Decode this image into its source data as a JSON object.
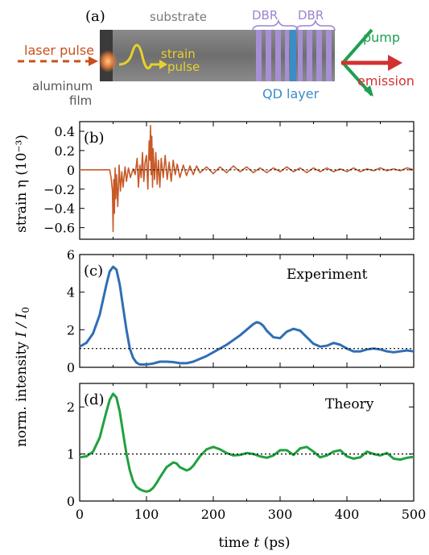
{
  "schematic": {
    "label": "(a)",
    "substrate": "substrate",
    "dbr_left": "DBR",
    "dbr_right": "DBR",
    "laser_pulse": "laser pulse",
    "aluminum": "aluminum",
    "film": "film",
    "strain": "strain",
    "pulse": "pulse",
    "qd_layer": "QD layer",
    "pump": "pump",
    "emission": "emission",
    "colors": {
      "substrate": "#7a7a7a",
      "dbr": "#a68fd6",
      "qd": "#3c8cc8",
      "laser": "#c8501e",
      "strain_pulse": "#e8d22a",
      "pump": "#1ea050",
      "emission": "#d23232",
      "dbr_label": "#9b86cf",
      "qd_label": "#3c8cc8"
    }
  },
  "chart_data": [
    {
      "panel": "(b)",
      "type": "line",
      "ylabel_prefix": "strain η",
      "ylabel_unit": "(10⁻³)",
      "xlim": [
        0,
        500
      ],
      "ylim": [
        -0.72,
        0.5
      ],
      "yticks": [
        -0.6,
        -0.4,
        -0.2,
        0,
        0.2,
        0.4
      ],
      "ytick_labels": [
        "−0.6",
        "−0.4",
        "−0.2",
        "0",
        "0.2",
        "0.4"
      ],
      "series": [
        {
          "color": "#c85a28",
          "x": [
            0,
            40,
            45,
            47,
            49,
            50,
            51,
            52,
            53,
            54,
            55,
            57,
            59,
            61,
            63,
            65,
            68,
            70,
            73,
            76,
            80,
            83,
            86,
            88,
            90,
            92,
            94,
            96,
            98,
            100,
            102,
            104,
            105,
            106,
            107,
            108,
            109,
            110,
            112,
            114,
            116,
            118,
            120,
            122,
            125,
            128,
            131,
            134,
            137,
            140,
            143,
            146,
            150,
            155,
            160,
            165,
            170,
            175,
            180,
            190,
            200,
            210,
            220,
            230,
            240,
            250,
            260,
            270,
            280,
            290,
            300,
            310,
            320,
            330,
            340,
            350,
            360,
            370,
            380,
            390,
            400,
            410,
            420,
            430,
            440,
            450,
            460,
            470,
            480,
            490,
            500
          ],
          "y": [
            0,
            0,
            0,
            -0.08,
            -0.22,
            -0.64,
            -0.1,
            -0.45,
            0.02,
            -0.3,
            -0.05,
            -0.38,
            0.05,
            -0.22,
            -0.02,
            -0.18,
            0.03,
            -0.12,
            0.02,
            -0.08,
            0.01,
            -0.05,
            0.12,
            -0.18,
            0.05,
            -0.08,
            0.18,
            -0.12,
            0.08,
            0.15,
            -0.2,
            0.3,
            0.1,
            0.46,
            -0.05,
            0.35,
            -0.18,
            0.22,
            -0.1,
            0.18,
            -0.15,
            0.1,
            -0.18,
            0.12,
            -0.08,
            0.15,
            -0.1,
            0.08,
            -0.12,
            0.1,
            -0.05,
            0.06,
            -0.08,
            0.05,
            -0.06,
            0.04,
            -0.05,
            0.04,
            -0.03,
            0.03,
            -0.04,
            0.03,
            -0.03,
            0.04,
            -0.02,
            0.03,
            -0.03,
            0.02,
            -0.03,
            0.02,
            -0.02,
            0.03,
            -0.02,
            0.02,
            -0.03,
            0.02,
            -0.02,
            0.02,
            -0.02,
            0.01,
            -0.02,
            0.02,
            -0.02,
            0.01,
            -0.01,
            0.02,
            -0.01,
            0.01,
            -0.01,
            0.02,
            0
          ]
        },
        {
          "color": "#000000",
          "dashed": true,
          "x": [
            80,
            500
          ],
          "y": [
            0,
            0
          ]
        }
      ]
    },
    {
      "panel": "(c)",
      "type": "line",
      "annotation": "Experiment",
      "xlim": [
        0,
        500
      ],
      "ylim": [
        0,
        6
      ],
      "yticks": [
        0,
        2,
        4,
        6
      ],
      "ytick_labels": [
        "0",
        "2",
        "4",
        "6"
      ],
      "series": [
        {
          "color": "#2f6eb4",
          "x": [
            0,
            10,
            20,
            30,
            40,
            45,
            50,
            55,
            60,
            65,
            70,
            75,
            80,
            85,
            90,
            100,
            110,
            120,
            130,
            140,
            150,
            160,
            170,
            180,
            190,
            200,
            210,
            220,
            230,
            240,
            250,
            260,
            265,
            270,
            275,
            280,
            290,
            300,
            310,
            320,
            330,
            340,
            350,
            360,
            370,
            380,
            390,
            400,
            410,
            420,
            430,
            440,
            450,
            460,
            470,
            480,
            490,
            500
          ],
          "y": [
            1.1,
            1.3,
            1.8,
            2.8,
            4.4,
            5.1,
            5.35,
            5.2,
            4.4,
            3.2,
            2.0,
            1.0,
            0.5,
            0.25,
            0.15,
            0.15,
            0.2,
            0.3,
            0.3,
            0.28,
            0.22,
            0.22,
            0.3,
            0.45,
            0.6,
            0.8,
            1.0,
            1.2,
            1.45,
            1.7,
            2.0,
            2.3,
            2.4,
            2.35,
            2.2,
            1.95,
            1.6,
            1.55,
            1.9,
            2.05,
            1.95,
            1.6,
            1.25,
            1.1,
            1.15,
            1.3,
            1.2,
            1.0,
            0.85,
            0.85,
            0.95,
            1.0,
            0.95,
            0.85,
            0.8,
            0.85,
            0.9,
            0.85
          ]
        },
        {
          "color": "#000000",
          "dashed": true,
          "x": [
            0,
            500
          ],
          "y": [
            1,
            1
          ]
        }
      ]
    },
    {
      "panel": "(d)",
      "type": "line",
      "annotation": "Theory",
      "xlim": [
        0,
        500
      ],
      "ylim": [
        0,
        2.5
      ],
      "yticks": [
        0,
        1,
        2
      ],
      "ytick_labels": [
        "0",
        "1",
        "2"
      ],
      "series": [
        {
          "color": "#22a040",
          "x": [
            0,
            10,
            20,
            30,
            40,
            45,
            50,
            55,
            60,
            65,
            70,
            75,
            80,
            85,
            90,
            95,
            100,
            105,
            110,
            115,
            120,
            130,
            140,
            145,
            150,
            160,
            165,
            170,
            180,
            190,
            200,
            210,
            220,
            230,
            240,
            250,
            260,
            270,
            280,
            290,
            300,
            310,
            320,
            330,
            340,
            350,
            360,
            370,
            380,
            390,
            400,
            410,
            420,
            430,
            440,
            450,
            460,
            470,
            480,
            490,
            500
          ],
          "y": [
            0.93,
            0.95,
            1.05,
            1.35,
            1.9,
            2.15,
            2.28,
            2.2,
            1.9,
            1.45,
            1.0,
            0.65,
            0.42,
            0.3,
            0.25,
            0.22,
            0.2,
            0.22,
            0.28,
            0.38,
            0.5,
            0.72,
            0.82,
            0.8,
            0.72,
            0.65,
            0.68,
            0.75,
            0.95,
            1.1,
            1.15,
            1.1,
            1.02,
            0.97,
            0.98,
            1.02,
            1.0,
            0.95,
            0.92,
            0.97,
            1.08,
            1.08,
            0.98,
            1.12,
            1.15,
            1.05,
            0.93,
            0.97,
            1.05,
            1.08,
            0.95,
            0.9,
            0.93,
            1.05,
            1.0,
            0.97,
            1.02,
            0.9,
            0.88,
            0.92,
            0.94
          ]
        },
        {
          "color": "#000000",
          "dashed": true,
          "x": [
            0,
            500
          ],
          "y": [
            1,
            1
          ]
        }
      ]
    }
  ],
  "axes": {
    "xticks": [
      0,
      100,
      200,
      300,
      400,
      500
    ],
    "xtick_labels": [
      "0",
      "100",
      "200",
      "300",
      "400",
      "500"
    ],
    "xlabel_prefix": "time",
    "xlabel_var": "t",
    "xlabel_unit": "(ps)",
    "shared_ylabel_prefix": "norm. intensity",
    "shared_ylabel_var": "I / I",
    "shared_ylabel_sub": "0"
  }
}
